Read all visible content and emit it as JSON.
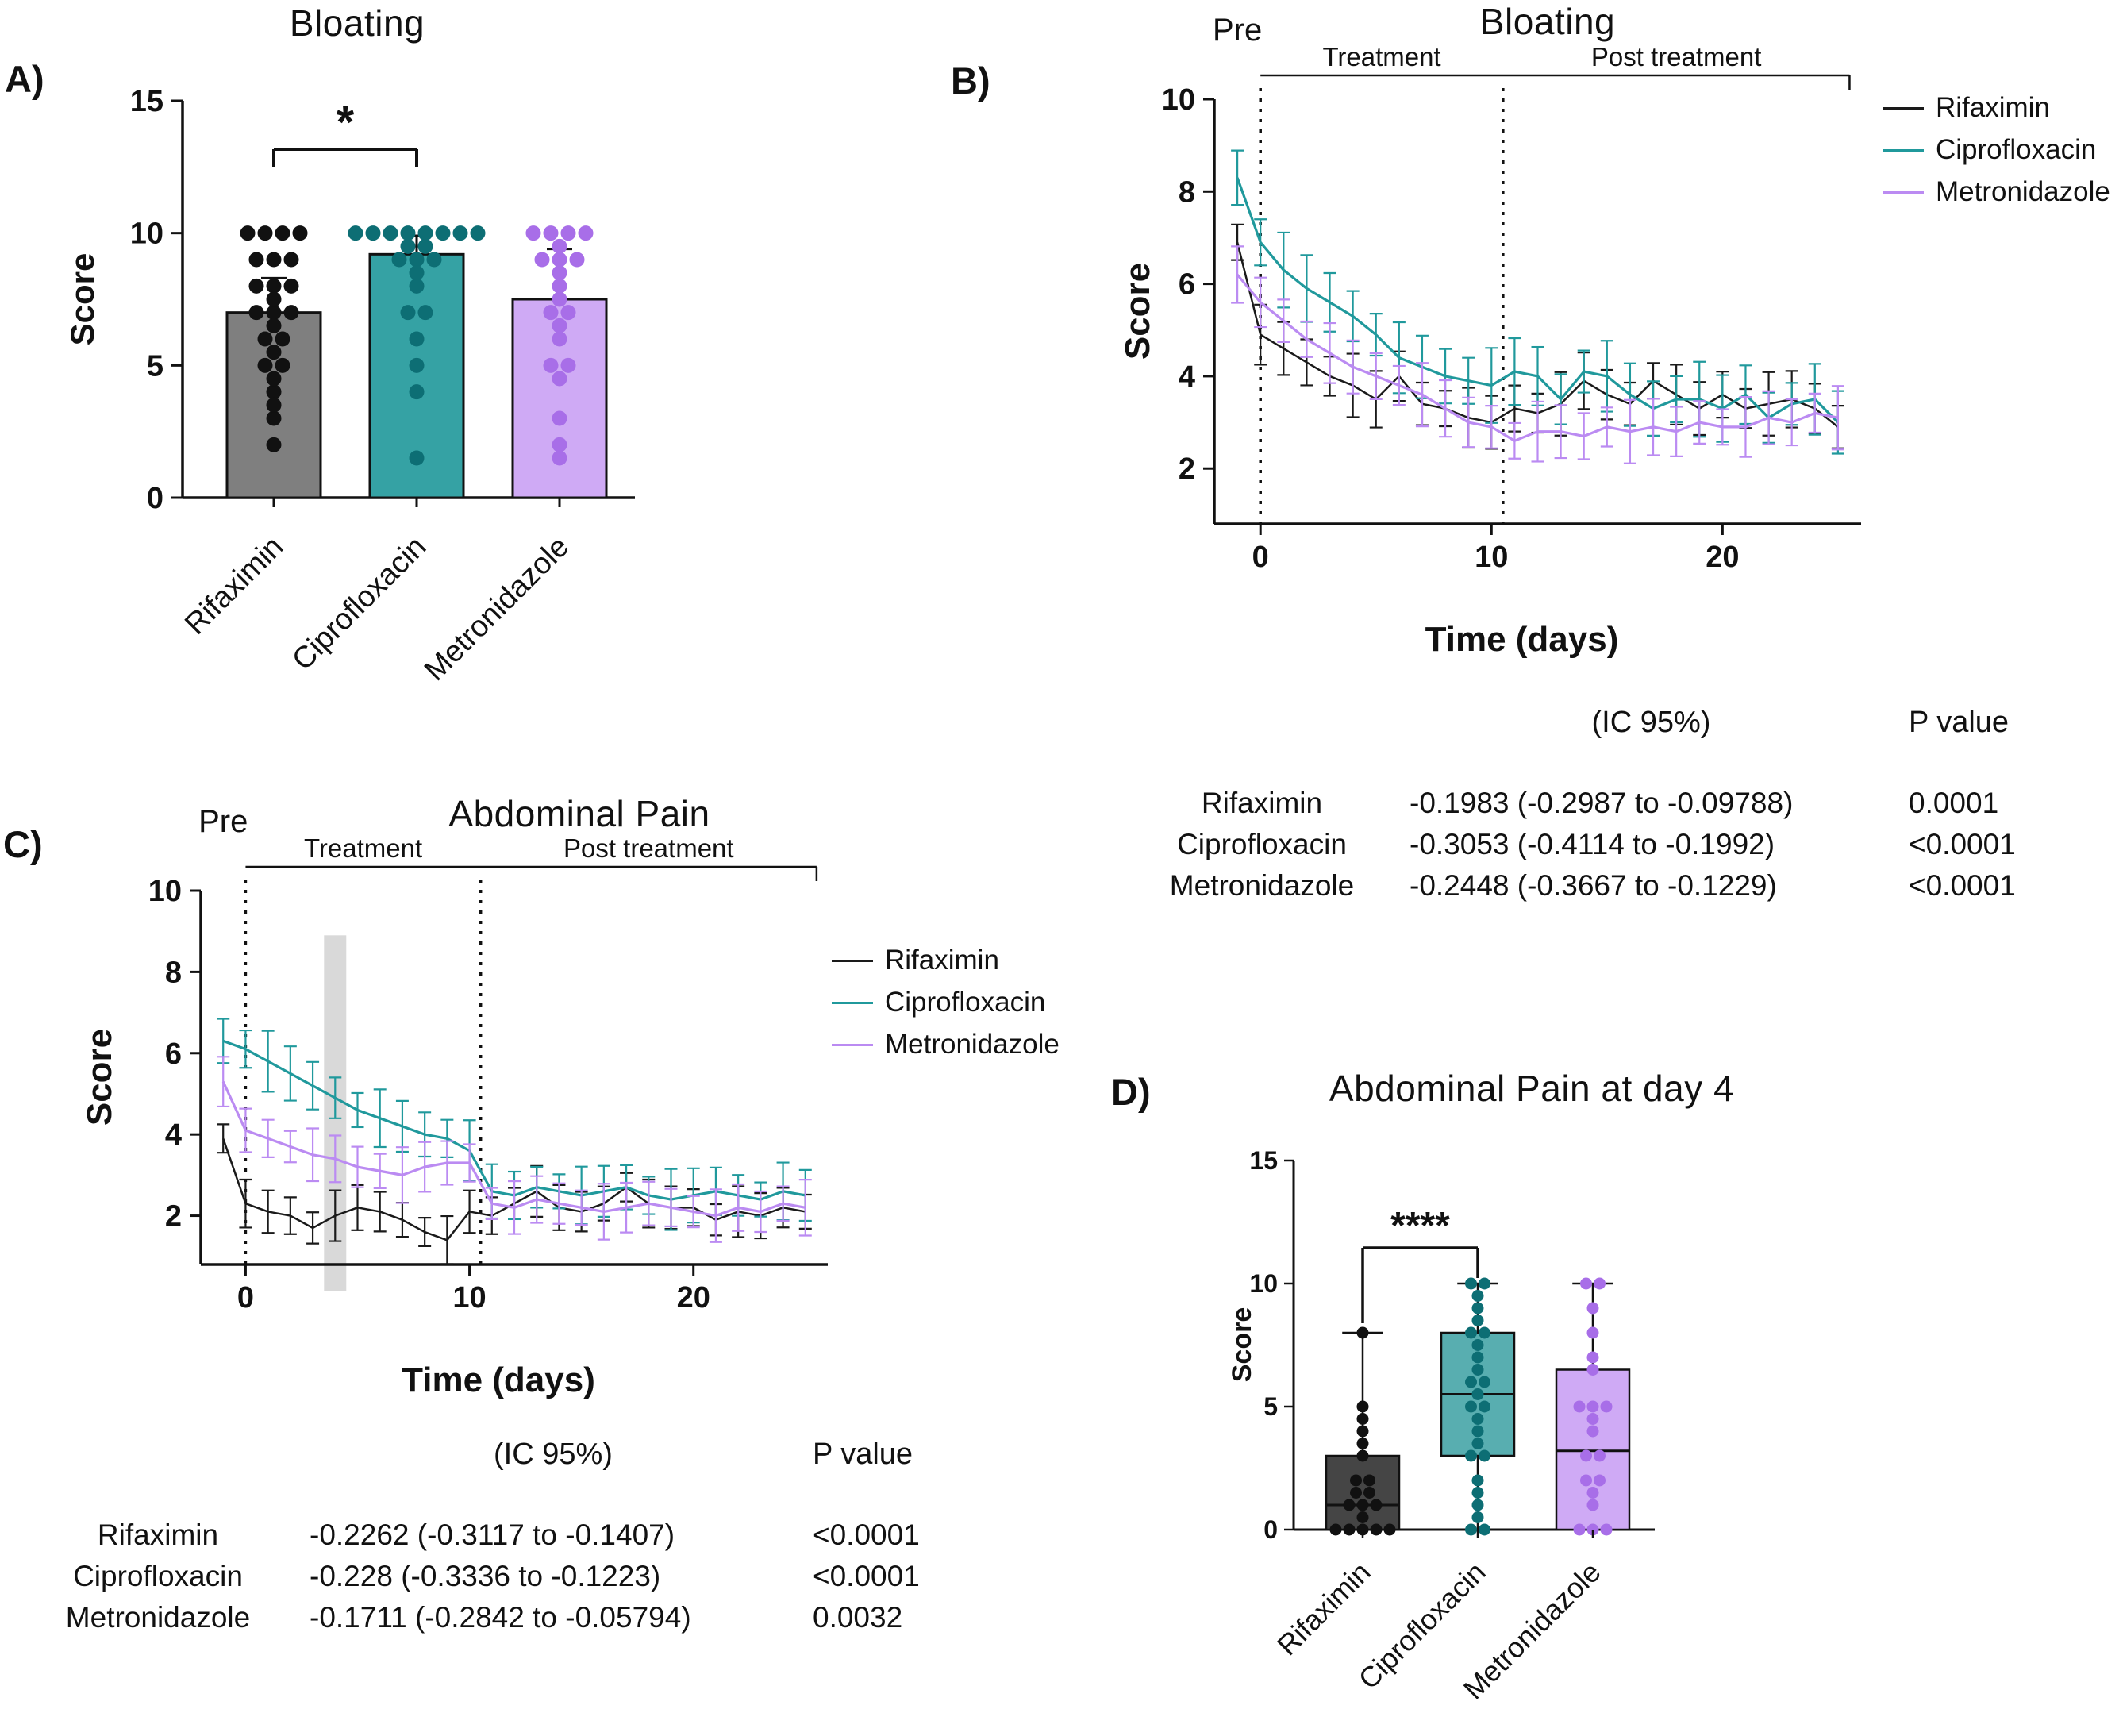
{
  "panels": {
    "A": {
      "label": "A)",
      "title": "Bloating"
    },
    "B": {
      "label": "B)",
      "title": "Bloating"
    },
    "C": {
      "label": "C)",
      "title": "Abdominal Pain"
    },
    "D": {
      "label": "D)",
      "title": "Abdominal Pain at day 4"
    }
  },
  "colors": {
    "rifaximin": "#1a1a1a",
    "ciprofloxacin": "#20999c",
    "metronidazole": "#bb8bf2",
    "bar_rifaximin": "#7f7f7f",
    "bar_ciprofloxacin": "#35a2a4",
    "bar_metronidazole": "#cfaaf5",
    "box_rifaximin": "#454545",
    "box_ciprofloxacin": "#58aeb0",
    "box_metronidazole": "#cfaaf5",
    "dot_rifaximin": "#111111",
    "dot_ciprofloxacin": "#0d6e74",
    "dot_metronidazole": "#a86ee8",
    "highlight": "#d9d9d9"
  },
  "chart_data": [
    {
      "panel": "A",
      "type": "bar",
      "title": "Bloating",
      "ylabel": "Score",
      "ylim": [
        0,
        15
      ],
      "yticks": [
        0,
        5,
        10,
        15
      ],
      "categories": [
        "Rifaximin",
        "Ciprofloxacin",
        "Metronidazole"
      ],
      "series_keys": [
        "rifaximin",
        "ciprofloxacin",
        "metronidazole"
      ],
      "means": [
        7.0,
        9.2,
        7.5
      ],
      "sd_up": [
        1.3,
        0.7,
        1.9
      ],
      "scatter": [
        [
          10,
          10,
          10,
          10,
          9,
          9,
          9,
          8,
          8,
          8,
          7.5,
          7,
          7,
          7,
          6.5,
          6,
          6,
          5.5,
          5,
          5,
          4.5,
          4,
          3.5,
          3,
          2
        ],
        [
          10,
          10,
          10,
          10,
          10,
          10,
          10,
          10,
          9.5,
          9.5,
          9,
          9,
          9,
          8.5,
          8,
          7,
          7,
          6,
          5,
          4,
          1.5
        ],
        [
          10,
          10,
          10,
          10,
          9.5,
          9,
          9,
          9,
          8.5,
          8,
          7.5,
          7,
          7,
          6.5,
          6,
          5,
          5,
          4.5,
          3,
          2,
          1.5
        ]
      ],
      "significance": {
        "between": [
          0,
          1
        ],
        "label": "*"
      }
    },
    {
      "panel": "B",
      "type": "line",
      "title": "Bloating",
      "xlabel": "Time (days)",
      "ylabel": "Score",
      "xlim": [
        -2,
        26
      ],
      "ylim": [
        0.8,
        10
      ],
      "xticks": [
        0,
        10,
        20
      ],
      "yticks": [
        2,
        4,
        6,
        8,
        10
      ],
      "pre_label": "Pre",
      "phase_labels": [
        "Treatment",
        "Post treatment"
      ],
      "phase_days": [
        0,
        10.5,
        25.5
      ],
      "x": [
        -1,
        0,
        1,
        2,
        3,
        4,
        5,
        6,
        7,
        8,
        9,
        10,
        11,
        12,
        13,
        14,
        15,
        16,
        17,
        18,
        19,
        20,
        21,
        22,
        23,
        24,
        25
      ],
      "series": [
        {
          "name": "Rifaximin",
          "color_key": "rifaximin",
          "err": 0.55,
          "values": [
            6.9,
            4.9,
            4.6,
            4.3,
            4.0,
            3.8,
            3.5,
            4.0,
            3.4,
            3.3,
            3.1,
            3.0,
            3.3,
            3.2,
            3.4,
            3.9,
            3.6,
            3.4,
            3.9,
            3.6,
            3.3,
            3.6,
            3.3,
            3.4,
            3.5,
            3.3,
            2.9
          ]
        },
        {
          "name": "Ciprofloxacin",
          "color_key": "ciprofloxacin",
          "err": 0.65,
          "values": [
            8.3,
            6.9,
            6.3,
            5.9,
            5.6,
            5.3,
            4.9,
            4.4,
            4.2,
            4.0,
            3.9,
            3.8,
            4.1,
            4.0,
            3.5,
            4.1,
            4.0,
            3.6,
            3.3,
            3.5,
            3.5,
            3.3,
            3.6,
            3.1,
            3.4,
            3.5,
            3.0
          ]
        },
        {
          "name": "Metronidazole",
          "color_key": "metronidazole",
          "err": 0.55,
          "values": [
            6.2,
            5.6,
            5.2,
            4.8,
            4.5,
            4.2,
            4.0,
            3.8,
            3.6,
            3.3,
            3.0,
            2.9,
            2.6,
            2.8,
            2.8,
            2.7,
            2.9,
            2.8,
            2.9,
            2.8,
            3.0,
            2.9,
            2.9,
            3.1,
            3.0,
            3.2,
            3.1
          ]
        }
      ]
    },
    {
      "panel": "C",
      "type": "line",
      "title": "Abdominal Pain",
      "xlabel": "Time (days)",
      "ylabel": "Score",
      "xlim": [
        -2,
        26
      ],
      "ylim": [
        0.8,
        10
      ],
      "xticks": [
        0,
        10,
        20
      ],
      "yticks": [
        2,
        4,
        6,
        8,
        10
      ],
      "pre_label": "Pre",
      "phase_labels": [
        "Treatment",
        "Post treatment"
      ],
      "phase_days": [
        0,
        10.5,
        25.5
      ],
      "highlight_day": 4,
      "x": [
        -1,
        0,
        1,
        2,
        3,
        4,
        5,
        6,
        7,
        8,
        9,
        10,
        11,
        12,
        13,
        14,
        15,
        16,
        17,
        18,
        19,
        20,
        21,
        22,
        23,
        24,
        25
      ],
      "series": [
        {
          "name": "Rifaximin",
          "color_key": "rifaximin",
          "err": 0.5,
          "values": [
            3.9,
            2.3,
            2.1,
            2.0,
            1.7,
            2.0,
            2.2,
            2.1,
            1.9,
            1.6,
            1.4,
            2.1,
            2.0,
            2.3,
            2.6,
            2.2,
            2.1,
            2.3,
            2.7,
            2.3,
            2.2,
            2.2,
            1.9,
            2.1,
            2.0,
            2.2,
            2.1
          ]
        },
        {
          "name": "Ciprofloxacin",
          "color_key": "ciprofloxacin",
          "err": 0.6,
          "values": [
            6.3,
            6.1,
            5.8,
            5.5,
            5.2,
            4.9,
            4.6,
            4.4,
            4.2,
            4.0,
            3.9,
            3.6,
            2.6,
            2.5,
            2.7,
            2.6,
            2.5,
            2.6,
            2.7,
            2.5,
            2.4,
            2.5,
            2.6,
            2.5,
            2.4,
            2.6,
            2.5
          ]
        },
        {
          "name": "Metronidazole",
          "color_key": "metronidazole",
          "err": 0.55,
          "values": [
            5.3,
            4.1,
            3.9,
            3.7,
            3.5,
            3.4,
            3.2,
            3.1,
            3.0,
            3.2,
            3.3,
            3.3,
            2.3,
            2.2,
            2.4,
            2.3,
            2.2,
            2.1,
            2.2,
            2.3,
            2.2,
            2.1,
            2.0,
            2.2,
            2.1,
            2.3,
            2.2
          ]
        }
      ]
    },
    {
      "panel": "D",
      "type": "box",
      "title": "Abdominal Pain at day 4",
      "ylabel": "Score",
      "ylim": [
        0,
        15
      ],
      "yticks": [
        0,
        5,
        10,
        15
      ],
      "categories": [
        "Rifaximin",
        "Ciprofloxacin",
        "Metronidazole"
      ],
      "series_keys": [
        "rifaximin",
        "ciprofloxacin",
        "metronidazole"
      ],
      "boxes": [
        {
          "min": 0,
          "q1": 0,
          "median": 1,
          "q3": 3,
          "max": 8
        },
        {
          "min": 0,
          "q1": 3,
          "median": 5.5,
          "q3": 8,
          "max": 10
        },
        {
          "min": 0,
          "q1": 0,
          "median": 3.2,
          "q3": 6.5,
          "max": 10
        }
      ],
      "scatter": [
        [
          8,
          5,
          4.5,
          4,
          3.5,
          3,
          2,
          2,
          1.5,
          1.5,
          1,
          1,
          1,
          0.5,
          0,
          0,
          0,
          0,
          0
        ],
        [
          10,
          10,
          9.5,
          9,
          8.5,
          8,
          8,
          7.5,
          7,
          6.5,
          6,
          6,
          5.5,
          5,
          5,
          4.5,
          4,
          3.5,
          3,
          3,
          2,
          1.5,
          1,
          0.5,
          0,
          0
        ],
        [
          10,
          10,
          9,
          8,
          7,
          6.5,
          5,
          5,
          5,
          4.5,
          4,
          3,
          3,
          2,
          2,
          1.5,
          1,
          0,
          0,
          0
        ]
      ],
      "significance": {
        "between": [
          0,
          1
        ],
        "label": "****"
      }
    }
  ],
  "tables": {
    "B": {
      "ic_header": "(IC 95%)",
      "p_header": "P value",
      "rows": [
        {
          "name": "Rifaximin",
          "ic": "-0.1983 (-0.2987 to -0.09788)",
          "p": "0.0001"
        },
        {
          "name": "Ciprofloxacin",
          "ic": "-0.3053 (-0.4114 to -0.1992)",
          "p": "<0.0001"
        },
        {
          "name": "Metronidazole",
          "ic": "-0.2448 (-0.3667 to -0.1229)",
          "p": "<0.0001"
        }
      ]
    },
    "C": {
      "ic_header": "(IC 95%)",
      "p_header": "P value",
      "rows": [
        {
          "name": "Rifaximin",
          "ic": "-0.2262 (-0.3117 to -0.1407)",
          "p": "<0.0001"
        },
        {
          "name": "Ciprofloxacin",
          "ic": "-0.228 (-0.3336 to -0.1223)",
          "p": "<0.0001"
        },
        {
          "name": "Metronidazole",
          "ic": "-0.1711 (-0.2842 to -0.05794)",
          "p": "0.0032"
        }
      ]
    }
  }
}
